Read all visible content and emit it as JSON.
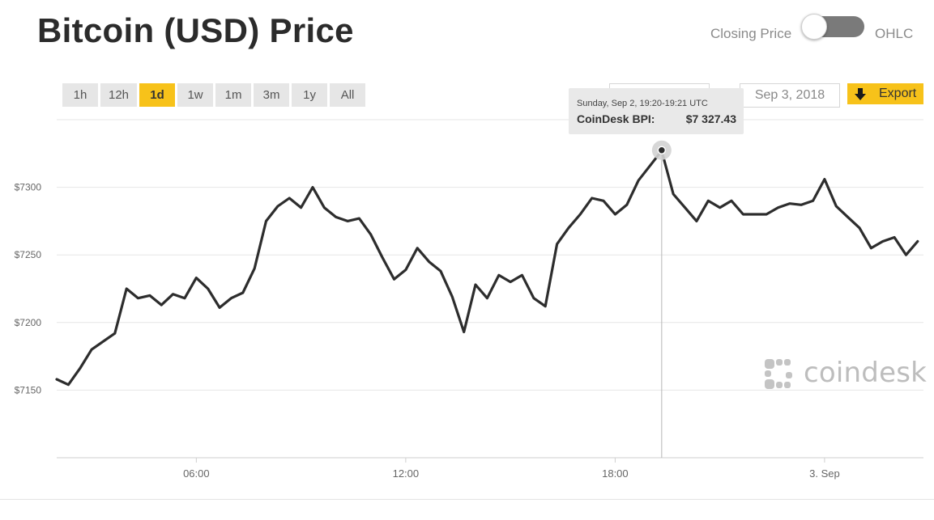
{
  "header": {
    "title": "Bitcoin (USD) Price",
    "toggle": {
      "left_label": "Closing Price",
      "right_label": "OHLC",
      "state": "Closing Price"
    }
  },
  "controls": {
    "ranges": [
      "1h",
      "12h",
      "1d",
      "1w",
      "1m",
      "3m",
      "1y",
      "All"
    ],
    "active_range": "1d",
    "date_from": "",
    "date_to": "Sep 3, 2018",
    "export_label": "Export"
  },
  "tooltip": {
    "time": "Sunday, Sep 2, 19:20-19:21 UTC",
    "label": "CoinDesk BPI:",
    "value": "$7 327.43"
  },
  "logo": {
    "text": "coindesk"
  },
  "colors": {
    "accent": "#f7c21a",
    "line": "#2d2d2d",
    "grid": "#e6e6e6",
    "toggle": "#7a7a7a"
  },
  "chart_data": {
    "type": "line",
    "series": [
      {
        "name": "CoinDesk BPI",
        "x": [
          "2018-09-02 02:00",
          "02:20",
          "02:40",
          "03:00",
          "03:20",
          "03:40",
          "04:00",
          "04:20",
          "04:40",
          "05:00",
          "05:20",
          "05:40",
          "06:00",
          "06:20",
          "06:40",
          "07:00",
          "07:20",
          "07:40",
          "08:00",
          "08:20",
          "08:40",
          "09:00",
          "09:20",
          "09:40",
          "10:00",
          "10:20",
          "10:40",
          "11:00",
          "11:20",
          "11:40",
          "12:00",
          "12:20",
          "12:40",
          "13:00",
          "13:20",
          "13:40",
          "14:00",
          "14:20",
          "14:40",
          "15:00",
          "15:20",
          "15:40",
          "16:00",
          "16:20",
          "16:40",
          "17:00",
          "17:20",
          "17:40",
          "18:00",
          "18:20",
          "18:40",
          "19:00",
          "19:20",
          "19:40",
          "20:00",
          "20:20",
          "20:40",
          "21:00",
          "21:20",
          "21:40",
          "22:00",
          "22:20",
          "22:40",
          "23:00",
          "23:20",
          "23:40",
          "2018-09-03 00:00",
          "00:20",
          "00:40",
          "01:00",
          "01:20",
          "01:40",
          "02:00",
          "02:20",
          "02:40"
        ],
        "values": [
          7158,
          7154,
          7166,
          7180,
          7186,
          7192,
          7225,
          7218,
          7220,
          7213,
          7221,
          7218,
          7233,
          7225,
          7211,
          7218,
          7222,
          7240,
          7275,
          7286,
          7292,
          7285,
          7300,
          7285,
          7278,
          7275,
          7277,
          7265,
          7248,
          7232,
          7239,
          7255,
          7245,
          7238,
          7219,
          7193,
          7228,
          7218,
          7235,
          7230,
          7235,
          7218,
          7212,
          7258,
          7270,
          7280,
          7292,
          7290,
          7280,
          7287,
          7305,
          7316,
          7327,
          7295,
          7285,
          7275,
          7290,
          7285,
          7290,
          7280,
          7280,
          7280,
          7285,
          7288,
          7287,
          7290,
          7306,
          7286,
          7278,
          7270,
          7255,
          7260,
          7263,
          7250,
          7260
        ]
      }
    ],
    "x_tick_labels": [
      "06:00",
      "12:00",
      "18:00",
      "3. Sep"
    ],
    "y_tick_labels": [
      "$7150",
      "$7200",
      "$7250",
      "$7300"
    ],
    "ylim": [
      7100,
      7350
    ],
    "grid": true,
    "highlight": {
      "x": "2018-09-02 19:20",
      "value": 7327.43
    }
  }
}
